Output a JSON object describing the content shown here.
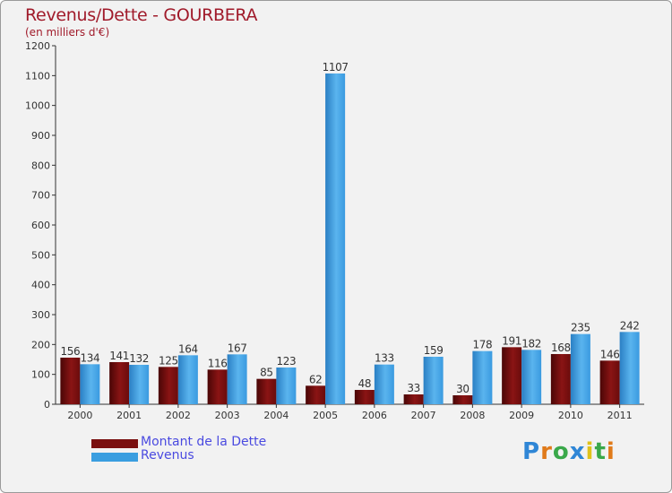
{
  "chart_data": {
    "type": "bar",
    "title": "Revenus/Dette - GOURBERA",
    "subtitle": "(en milliers d'€)",
    "xlabel": "",
    "ylabel": "",
    "categories": [
      "2000",
      "2001",
      "2002",
      "2003",
      "2004",
      "2005",
      "2006",
      "2007",
      "2008",
      "2009",
      "2010",
      "2011"
    ],
    "series": [
      {
        "name": "Montant de la Dette",
        "color": "#7a1010",
        "values": [
          156,
          141,
          125,
          116,
          85,
          62,
          48,
          33,
          30,
          191,
          168,
          146
        ]
      },
      {
        "name": "Revenus",
        "color": "#3a9ee0",
        "values": [
          134,
          132,
          164,
          167,
          123,
          1107,
          133,
          159,
          178,
          182,
          235,
          242
        ]
      }
    ],
    "ylim": [
      0,
      1200
    ],
    "yticks": [
      0,
      100,
      200,
      300,
      400,
      500,
      600,
      700,
      800,
      900,
      1000,
      1100,
      1200
    ],
    "grid": false,
    "legend_position": "bottom-left"
  },
  "logo": {
    "text": "Proxiti",
    "letters": [
      "P",
      "r",
      "o",
      "x",
      "i",
      "t",
      "i"
    ],
    "colors": [
      "#2f86d6",
      "#e07a1a",
      "#3aa84a",
      "#2f86d6",
      "#e0c21a",
      "#3aa84a",
      "#e07a1a"
    ]
  }
}
